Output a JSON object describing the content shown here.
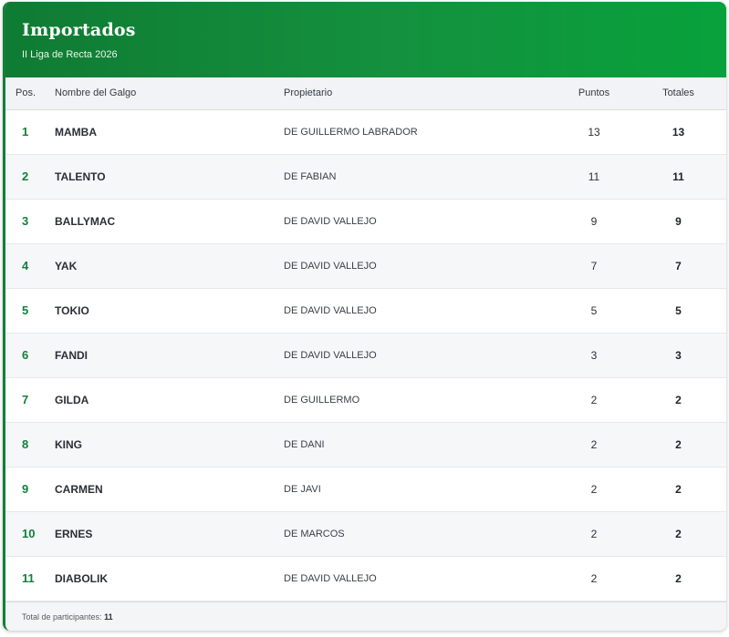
{
  "header": {
    "title": "Importados",
    "subtitle": "II Liga de Recta 2026"
  },
  "table": {
    "columns": {
      "pos": "Pos.",
      "name": "Nombre del Galgo",
      "owner": "Propietario",
      "points": "Puntos",
      "totals": "Totales"
    },
    "rows": [
      {
        "pos": "1",
        "name": "MAMBA",
        "owner": "DE GUILLERMO LABRADOR",
        "points": "13",
        "totals": "13"
      },
      {
        "pos": "2",
        "name": "TALENTO",
        "owner": "DE FABIAN",
        "points": "11",
        "totals": "11"
      },
      {
        "pos": "3",
        "name": "BALLYMAC",
        "owner": "DE DAVID VALLEJO",
        "points": "9",
        "totals": "9"
      },
      {
        "pos": "4",
        "name": "YAK",
        "owner": "DE DAVID VALLEJO",
        "points": "7",
        "totals": "7"
      },
      {
        "pos": "5",
        "name": "TOKIO",
        "owner": "DE DAVID VALLEJO",
        "points": "5",
        "totals": "5"
      },
      {
        "pos": "6",
        "name": "FANDI",
        "owner": "DE DAVID VALLEJO",
        "points": "3",
        "totals": "3"
      },
      {
        "pos": "7",
        "name": "GILDA",
        "owner": "DE GUILLERMO",
        "points": "2",
        "totals": "2"
      },
      {
        "pos": "8",
        "name": "KING",
        "owner": "DE DANI",
        "points": "2",
        "totals": "2"
      },
      {
        "pos": "9",
        "name": "CARMEN",
        "owner": "DE JAVI",
        "points": "2",
        "totals": "2"
      },
      {
        "pos": "10",
        "name": "ERNES",
        "owner": "DE MARCOS",
        "points": "2",
        "totals": "2"
      },
      {
        "pos": "11",
        "name": "DIABOLIK",
        "owner": "DE DAVID VALLEJO",
        "points": "2",
        "totals": "2"
      }
    ]
  },
  "footer": {
    "label": "Total de participantes:",
    "count": "11"
  },
  "colors": {
    "brand_green": "#12803a",
    "header_gradient_start": "#0f7b33",
    "header_gradient_end": "#07a23c"
  }
}
